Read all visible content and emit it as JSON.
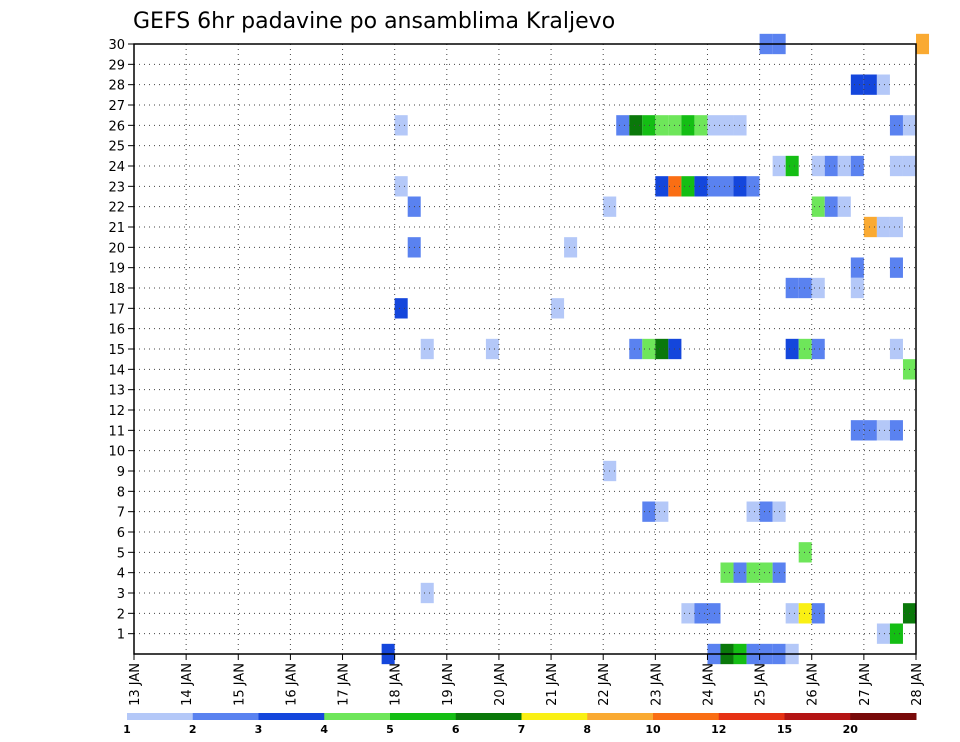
{
  "chart_data": {
    "type": "heatmap",
    "title": "GEFS 6hr padavine po ansamblima Kraljevo",
    "xlabel": "",
    "ylabel": "",
    "x_range": [
      "13 JAN",
      "28 JAN"
    ],
    "x_ticks": [
      "13 JAN",
      "14 JAN",
      "15 JAN",
      "16 JAN",
      "17 JAN",
      "18 JAN",
      "19 JAN",
      "20 JAN",
      "21 JAN",
      "22 JAN",
      "23 JAN",
      "24 JAN",
      "25 JAN",
      "26 JAN",
      "27 JAN",
      "28 JAN"
    ],
    "y_ticks": [
      1,
      2,
      3,
      4,
      5,
      6,
      7,
      8,
      9,
      10,
      11,
      12,
      13,
      14,
      15,
      16,
      17,
      18,
      19,
      20,
      21,
      22,
      23,
      24,
      25,
      26,
      27,
      28,
      29,
      30
    ],
    "y_range": [
      0,
      30
    ],
    "grid": true,
    "colorbar": {
      "colors": [
        "#b4c8f8",
        "#5a82f0",
        "#1446dc",
        "#6ee65a",
        "#14be14",
        "#0a780a",
        "#faf014",
        "#faaa32",
        "#fa6e14",
        "#e63214",
        "#b41414",
        "#780a0a"
      ],
      "labels": [
        "1",
        "2",
        "3",
        "4",
        "5",
        "6",
        "7",
        "8",
        "10",
        "12",
        "15",
        "20"
      ]
    },
    "cell_step_days": 0.25,
    "cells": [
      {
        "day": 25.0,
        "m": 30,
        "v": 2
      },
      {
        "day": 25.25,
        "m": 30,
        "v": 2
      },
      {
        "day": 28.0,
        "m": 30,
        "v": 8
      },
      {
        "day": 26.75,
        "m": 28,
        "v": 3
      },
      {
        "day": 27.0,
        "m": 28,
        "v": 3
      },
      {
        "day": 27.25,
        "m": 28,
        "v": 1
      },
      {
        "day": 18.0,
        "m": 26,
        "v": 1
      },
      {
        "day": 22.25,
        "m": 26,
        "v": 2
      },
      {
        "day": 22.5,
        "m": 26,
        "v": 6
      },
      {
        "day": 22.75,
        "m": 26,
        "v": 5
      },
      {
        "day": 23.0,
        "m": 26,
        "v": 4
      },
      {
        "day": 23.25,
        "m": 26,
        "v": 4
      },
      {
        "day": 23.5,
        "m": 26,
        "v": 5
      },
      {
        "day": 23.75,
        "m": 26,
        "v": 4
      },
      {
        "day": 24.0,
        "m": 26,
        "v": 1
      },
      {
        "day": 24.25,
        "m": 26,
        "v": 1
      },
      {
        "day": 24.5,
        "m": 26,
        "v": 1
      },
      {
        "day": 27.5,
        "m": 26,
        "v": 2
      },
      {
        "day": 27.75,
        "m": 26,
        "v": 1
      },
      {
        "day": 25.25,
        "m": 24,
        "v": 1
      },
      {
        "day": 25.5,
        "m": 24,
        "v": 5
      },
      {
        "day": 26.0,
        "m": 24,
        "v": 1
      },
      {
        "day": 26.25,
        "m": 24,
        "v": 2
      },
      {
        "day": 26.5,
        "m": 24,
        "v": 1
      },
      {
        "day": 26.75,
        "m": 24,
        "v": 2
      },
      {
        "day": 27.5,
        "m": 24,
        "v": 1
      },
      {
        "day": 27.75,
        "m": 24,
        "v": 1
      },
      {
        "day": 18.0,
        "m": 23,
        "v": 1
      },
      {
        "day": 23.0,
        "m": 23,
        "v": 3
      },
      {
        "day": 23.25,
        "m": 23,
        "v": 9
      },
      {
        "day": 23.5,
        "m": 23,
        "v": 5
      },
      {
        "day": 23.75,
        "m": 23,
        "v": 3
      },
      {
        "day": 24.0,
        "m": 23,
        "v": 2
      },
      {
        "day": 24.25,
        "m": 23,
        "v": 2
      },
      {
        "day": 24.5,
        "m": 23,
        "v": 3
      },
      {
        "day": 24.75,
        "m": 23,
        "v": 2
      },
      {
        "day": 18.25,
        "m": 22,
        "v": 2
      },
      {
        "day": 22.0,
        "m": 22,
        "v": 1
      },
      {
        "day": 26.0,
        "m": 22,
        "v": 4
      },
      {
        "day": 26.25,
        "m": 22,
        "v": 2
      },
      {
        "day": 26.5,
        "m": 22,
        "v": 1
      },
      {
        "day": 27.0,
        "m": 21,
        "v": 8
      },
      {
        "day": 27.25,
        "m": 21,
        "v": 1
      },
      {
        "day": 27.5,
        "m": 21,
        "v": 1
      },
      {
        "day": 18.25,
        "m": 20,
        "v": 2
      },
      {
        "day": 21.25,
        "m": 20,
        "v": 1
      },
      {
        "day": 26.75,
        "m": 19,
        "v": 2
      },
      {
        "day": 27.5,
        "m": 19,
        "v": 2
      },
      {
        "day": 25.5,
        "m": 18,
        "v": 2
      },
      {
        "day": 25.75,
        "m": 18,
        "v": 2
      },
      {
        "day": 26.0,
        "m": 18,
        "v": 1
      },
      {
        "day": 26.75,
        "m": 18,
        "v": 1
      },
      {
        "day": 18.0,
        "m": 17,
        "v": 3
      },
      {
        "day": 21.0,
        "m": 17,
        "v": 1
      },
      {
        "day": 18.5,
        "m": 15,
        "v": 1
      },
      {
        "day": 19.75,
        "m": 15,
        "v": 1
      },
      {
        "day": 22.5,
        "m": 15,
        "v": 2
      },
      {
        "day": 22.75,
        "m": 15,
        "v": 4
      },
      {
        "day": 23.0,
        "m": 15,
        "v": 6
      },
      {
        "day": 23.25,
        "m": 15,
        "v": 3
      },
      {
        "day": 25.5,
        "m": 15,
        "v": 3
      },
      {
        "day": 25.75,
        "m": 15,
        "v": 4
      },
      {
        "day": 26.0,
        "m": 15,
        "v": 2
      },
      {
        "day": 27.5,
        "m": 15,
        "v": 1
      },
      {
        "day": 27.75,
        "m": 14,
        "v": 4
      },
      {
        "day": 26.75,
        "m": 11,
        "v": 2
      },
      {
        "day": 27.0,
        "m": 11,
        "v": 2
      },
      {
        "day": 27.25,
        "m": 11,
        "v": 1
      },
      {
        "day": 27.5,
        "m": 11,
        "v": 2
      },
      {
        "day": 22.0,
        "m": 9,
        "v": 1
      },
      {
        "day": 22.75,
        "m": 7,
        "v": 2
      },
      {
        "day": 23.0,
        "m": 7,
        "v": 1
      },
      {
        "day": 24.75,
        "m": 7,
        "v": 1
      },
      {
        "day": 25.0,
        "m": 7,
        "v": 2
      },
      {
        "day": 25.25,
        "m": 7,
        "v": 1
      },
      {
        "day": 25.75,
        "m": 5,
        "v": 4
      },
      {
        "day": 24.25,
        "m": 4,
        "v": 4
      },
      {
        "day": 24.5,
        "m": 4,
        "v": 2
      },
      {
        "day": 24.75,
        "m": 4,
        "v": 4
      },
      {
        "day": 25.0,
        "m": 4,
        "v": 4
      },
      {
        "day": 25.25,
        "m": 4,
        "v": 2
      },
      {
        "day": 18.5,
        "m": 3,
        "v": 1
      },
      {
        "day": 23.5,
        "m": 2,
        "v": 1
      },
      {
        "day": 23.75,
        "m": 2,
        "v": 2
      },
      {
        "day": 24.0,
        "m": 2,
        "v": 2
      },
      {
        "day": 25.5,
        "m": 2,
        "v": 1
      },
      {
        "day": 25.75,
        "m": 2,
        "v": 7
      },
      {
        "day": 26.0,
        "m": 2,
        "v": 2
      },
      {
        "day": 27.75,
        "m": 2,
        "v": 6
      },
      {
        "day": 27.25,
        "m": 1,
        "v": 1
      },
      {
        "day": 27.5,
        "m": 1,
        "v": 5
      },
      {
        "day": 17.75,
        "m": 0,
        "v": 3
      },
      {
        "day": 24.0,
        "m": 0,
        "v": 2
      },
      {
        "day": 24.25,
        "m": 0,
        "v": 6
      },
      {
        "day": 24.5,
        "m": 0,
        "v": 5
      },
      {
        "day": 24.75,
        "m": 0,
        "v": 2
      },
      {
        "day": 25.0,
        "m": 0,
        "v": 2
      },
      {
        "day": 25.25,
        "m": 0,
        "v": 2
      },
      {
        "day": 25.5,
        "m": 0,
        "v": 1
      }
    ]
  }
}
